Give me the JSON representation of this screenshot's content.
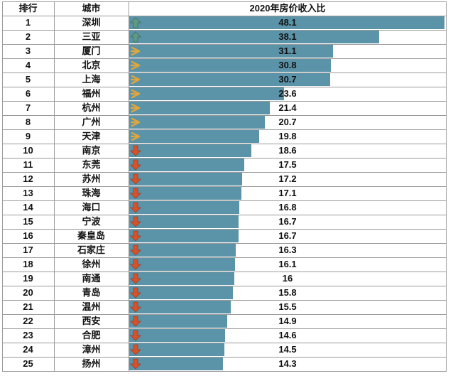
{
  "header": {
    "rank": "排行",
    "city": "城市",
    "metric": "2020年房价收入比"
  },
  "colors": {
    "bar": "#5b93a8",
    "up": "#5f9a85",
    "flat": "#e0a53b",
    "down": "#d4532c"
  },
  "chart_data": {
    "type": "bar",
    "orientation": "horizontal",
    "title": "2020年房价收入比",
    "columns": [
      "排行",
      "城市",
      "2020年房价收入比"
    ],
    "xlim": [
      0,
      48.1
    ],
    "rows": [
      {
        "rank": "1",
        "city": "深圳",
        "value": 48.1,
        "trend": "up"
      },
      {
        "rank": "2",
        "city": "三亚",
        "value": 38.1,
        "trend": "up"
      },
      {
        "rank": "3",
        "city": "厦门",
        "value": 31.1,
        "trend": "flat"
      },
      {
        "rank": "4",
        "city": "北京",
        "value": 30.8,
        "trend": "flat"
      },
      {
        "rank": "5",
        "city": "上海",
        "value": 30.7,
        "trend": "flat"
      },
      {
        "rank": "6",
        "city": "福州",
        "value": 23.6,
        "trend": "flat"
      },
      {
        "rank": "7",
        "city": "杭州",
        "value": 21.4,
        "trend": "flat"
      },
      {
        "rank": "8",
        "city": "广州",
        "value": 20.7,
        "trend": "flat"
      },
      {
        "rank": "9",
        "city": "天津",
        "value": 19.8,
        "trend": "flat"
      },
      {
        "rank": "10",
        "city": "南京",
        "value": 18.6,
        "trend": "down"
      },
      {
        "rank": "11",
        "city": "东莞",
        "value": 17.5,
        "trend": "down"
      },
      {
        "rank": "12",
        "city": "苏州",
        "value": 17.2,
        "trend": "down"
      },
      {
        "rank": "13",
        "city": "珠海",
        "value": 17.1,
        "trend": "down"
      },
      {
        "rank": "14",
        "city": "海口",
        "value": 16.8,
        "trend": "down"
      },
      {
        "rank": "15",
        "city": "宁波",
        "value": 16.7,
        "trend": "down"
      },
      {
        "rank": "16",
        "city": "秦皇岛",
        "value": 16.7,
        "trend": "down"
      },
      {
        "rank": "17",
        "city": "石家庄",
        "value": 16.3,
        "trend": "down"
      },
      {
        "rank": "18",
        "city": "徐州",
        "value": 16.1,
        "trend": "down"
      },
      {
        "rank": "19",
        "city": "南通",
        "value": 16,
        "trend": "down"
      },
      {
        "rank": "20",
        "city": "青岛",
        "value": 15.8,
        "trend": "down"
      },
      {
        "rank": "21",
        "city": "温州",
        "value": 15.5,
        "trend": "down"
      },
      {
        "rank": "22",
        "city": "西安",
        "value": 14.9,
        "trend": "down"
      },
      {
        "rank": "23",
        "city": "合肥",
        "value": 14.6,
        "trend": "down"
      },
      {
        "rank": "24",
        "city": "漳州",
        "value": 14.5,
        "trend": "down"
      },
      {
        "rank": "25",
        "city": "扬州",
        "value": 14.3,
        "trend": "down"
      }
    ]
  }
}
